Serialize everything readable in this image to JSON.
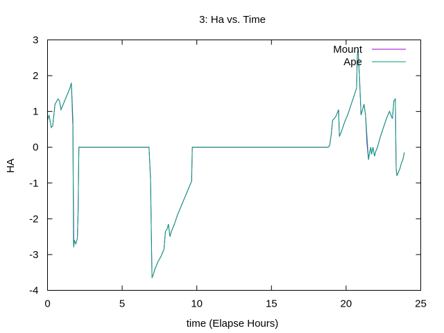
{
  "chart_data": {
    "type": "line",
    "title": "3: Ha vs. Time",
    "xlabel": "time (Elapse Hours)",
    "ylabel": "HA",
    "xlim": [
      0,
      25
    ],
    "ylim": [
      -4,
      3
    ],
    "xticks": [
      0,
      5,
      10,
      15,
      20,
      25
    ],
    "yticks": [
      -4,
      -3,
      -2,
      -1,
      0,
      1,
      2,
      3
    ],
    "grid": false,
    "legend": "top-right",
    "series": [
      {
        "name": "Mount",
        "color": "#9400d3",
        "x": [
          0,
          0.1,
          0.25,
          0.35,
          0.5,
          0.7,
          0.8,
          0.9,
          1.1,
          1.3,
          1.5,
          1.6,
          1.68,
          1.7,
          1.72,
          1.74,
          1.76,
          1.8,
          1.85,
          1.9,
          2.0,
          2.05,
          2.1,
          2.2,
          3,
          4,
          5,
          6,
          6.8,
          6.9,
          7.0,
          7.05,
          7.2,
          7.4,
          7.6,
          7.8,
          7.9,
          8.0,
          8.1,
          8.2,
          8.3,
          8.5,
          8.7,
          8.9,
          9.1,
          9.3,
          9.5,
          9.65,
          9.7,
          9.75,
          12,
          15,
          17,
          18.5,
          18.8,
          18.9,
          19.0,
          19.1,
          19.3,
          19.5,
          19.55,
          19.7,
          19.9,
          20.1,
          20.3,
          20.5,
          20.7,
          20.75,
          20.8,
          20.9,
          21.0,
          21.1,
          21.2,
          21.3,
          21.4,
          21.5,
          21.55,
          21.6,
          21.65,
          21.7,
          21.8,
          21.9,
          22.0,
          22.1,
          22.2,
          22.3,
          22.5,
          22.7,
          22.9,
          23.1,
          23.2,
          23.3,
          23.35,
          23.4,
          23.5,
          23.6,
          23.7,
          23.8,
          23.9
        ],
        "y": [
          0.75,
          0.9,
          0.55,
          0.6,
          1.2,
          1.35,
          1.3,
          1.05,
          1.25,
          1.45,
          1.65,
          1.8,
          0.95,
          0.7,
          -0.8,
          -1.6,
          -2.75,
          -2.6,
          -2.65,
          -2.7,
          -2.55,
          -1.8,
          0,
          0,
          0,
          0,
          0,
          0,
          0,
          -0.9,
          -3.65,
          -3.6,
          -3.4,
          -3.2,
          -3.05,
          -2.85,
          -2.35,
          -2.3,
          -2.15,
          -2.5,
          -2.35,
          -2.15,
          -1.9,
          -1.7,
          -1.5,
          -1.3,
          -1.1,
          -0.95,
          0,
          0,
          0,
          0,
          0,
          0,
          0,
          0.05,
          0.35,
          0.75,
          0.85,
          1.05,
          0.3,
          0.45,
          0.7,
          0.9,
          1.15,
          1.4,
          1.65,
          2.55,
          2.75,
          1.9,
          0.9,
          1.05,
          1.2,
          0.9,
          0.1,
          -0.35,
          -0.2,
          -0.1,
          0,
          -0.2,
          0,
          -0.25,
          -0.1,
          0,
          0.15,
          0.3,
          0.55,
          0.8,
          1.0,
          0.8,
          1.3,
          1.35,
          -0.6,
          -0.8,
          -0.7,
          -0.6,
          -0.45,
          -0.35,
          -0.15
        ],
        "_note_": ""
      },
      {
        "name": "Ape",
        "color": "#009e73",
        "x": [
          0,
          0.1,
          0.25,
          0.35,
          0.5,
          0.7,
          0.8,
          0.9,
          1.1,
          1.3,
          1.5,
          1.6,
          1.68,
          1.7,
          1.72,
          1.74,
          1.76,
          1.8,
          1.85,
          1.9,
          2.0,
          2.05,
          2.1,
          2.2,
          3,
          4,
          5,
          6,
          6.8,
          6.9,
          7.0,
          7.05,
          7.2,
          7.4,
          7.6,
          7.8,
          7.9,
          8.0,
          8.1,
          8.2,
          8.3,
          8.5,
          8.7,
          8.9,
          9.1,
          9.3,
          9.5,
          9.65,
          9.7,
          9.75,
          12,
          15,
          17,
          18.5,
          18.8,
          18.9,
          19.0,
          19.1,
          19.3,
          19.5,
          19.55,
          19.7,
          19.9,
          20.1,
          20.3,
          20.5,
          20.7,
          20.75,
          20.8,
          20.9,
          21.0,
          21.1,
          21.2,
          21.3,
          21.4,
          21.5,
          21.55,
          21.6,
          21.65,
          21.7,
          21.8,
          21.9,
          22.0,
          22.1,
          22.2,
          22.3,
          22.5,
          22.7,
          22.9,
          23.1,
          23.2,
          23.3,
          23.35,
          23.4,
          23.5,
          23.6,
          23.7,
          23.8,
          23.9
        ],
        "y": [
          0.75,
          0.9,
          0.55,
          0.6,
          1.2,
          1.35,
          1.3,
          1.05,
          1.25,
          1.45,
          1.65,
          1.8,
          0.7,
          0.6,
          -0.9,
          -2.7,
          -2.8,
          -2.6,
          -2.65,
          -2.7,
          -2.55,
          -1.8,
          0,
          0,
          0,
          0,
          0,
          0,
          0,
          -0.9,
          -3.65,
          -3.6,
          -3.4,
          -3.2,
          -3.05,
          -2.85,
          -2.35,
          -2.3,
          -2.15,
          -2.5,
          -2.35,
          -2.15,
          -1.9,
          -1.7,
          -1.5,
          -1.3,
          -1.1,
          -0.95,
          0,
          0,
          0,
          0,
          0,
          0,
          0,
          0.05,
          0.35,
          0.75,
          0.85,
          1.05,
          0.3,
          0.45,
          0.7,
          0.9,
          1.15,
          1.4,
          1.65,
          2.55,
          2.7,
          1.9,
          0.9,
          1.05,
          1.2,
          0.9,
          0.3,
          -0.35,
          -0.2,
          -0.1,
          0,
          -0.2,
          0,
          -0.25,
          -0.1,
          0,
          0.15,
          0.3,
          0.55,
          0.8,
          1.0,
          0.8,
          1.3,
          1.35,
          -0.6,
          -0.8,
          -0.7,
          -0.6,
          -0.45,
          -0.35,
          -0.15
        ]
      }
    ]
  }
}
